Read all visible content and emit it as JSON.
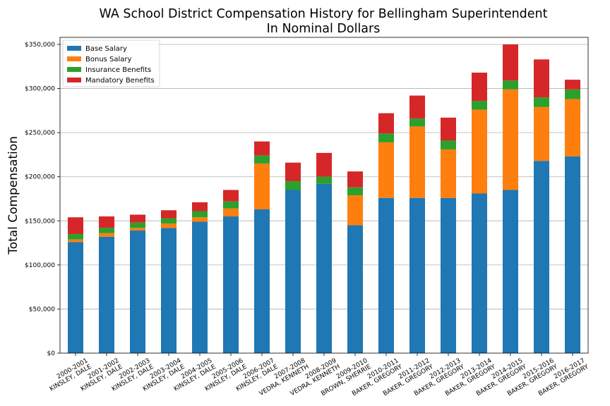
{
  "chart_data": {
    "type": "bar",
    "stacked": true,
    "title": "WA School District Compensation History for Bellingham Superintendent",
    "subtitle": "In Nominal Dollars",
    "xlabel": "",
    "ylabel": "Total Compensation",
    "ylim": [
      0,
      358000
    ],
    "yticks": [
      0,
      50000,
      100000,
      150000,
      200000,
      250000,
      300000,
      350000
    ],
    "ytick_labels": [
      "$0",
      "$50,000",
      "$100,000",
      "$150,000",
      "$200,000",
      "$250,000",
      "$300,000",
      "$350,000"
    ],
    "grid": "y",
    "legend_position": "top-left",
    "categories": [
      [
        "2000-2001",
        "KINSLEY, DALE"
      ],
      [
        "2001-2002",
        "KINSLEY, DALE"
      ],
      [
        "2002-2003",
        "KINSLEY, DALE"
      ],
      [
        "2003-2004",
        "KINSLEY, DALE"
      ],
      [
        "2004-2005",
        "KINSLEY, DALE"
      ],
      [
        "2005-2006",
        "KINSLEY, DALE"
      ],
      [
        "2006-2007",
        "KINSLEY, DALE"
      ],
      [
        "2007-2008",
        "VEDRA, KENNETH"
      ],
      [
        "2008-2009",
        "VEDRA, KENNETH"
      ],
      [
        "2009-2010",
        "BROWN, SHERRIE"
      ],
      [
        "2010-2011",
        "BAKER, GREGORY"
      ],
      [
        "2011-2012",
        "BAKER, GREGORY"
      ],
      [
        "2012-2013",
        "BAKER, GREGORY"
      ],
      [
        "2013-2014",
        "BAKER, GREGORY"
      ],
      [
        "2014-2015",
        "BAKER, GREGORY"
      ],
      [
        "2015-2016",
        "BAKER, GREGORY"
      ],
      [
        "2016-2017",
        "BAKER, GREGORY"
      ]
    ],
    "series": [
      {
        "name": "Base Salary",
        "color": "#1f77b4",
        "values": [
          126000,
          132000,
          139000,
          142000,
          149000,
          155000,
          163000,
          185000,
          192000,
          145000,
          176000,
          176000,
          176000,
          181000,
          185000,
          218000,
          223000
        ]
      },
      {
        "name": "Bonus Salary",
        "color": "#ff7f0e",
        "values": [
          3000,
          4000,
          3000,
          5000,
          5000,
          9000,
          52000,
          0,
          0,
          34000,
          63000,
          81000,
          55000,
          95000,
          114000,
          61000,
          65000
        ]
      },
      {
        "name": "Insurance Benefits",
        "color": "#2ca02c",
        "values": [
          6000,
          6000,
          6000,
          6000,
          7000,
          8000,
          9000,
          10000,
          8000,
          9000,
          10000,
          9000,
          10000,
          10000,
          10000,
          11000,
          11000
        ]
      },
      {
        "name": "Mandatory Benefits",
        "color": "#d62728",
        "values": [
          19000,
          13000,
          9000,
          9000,
          10000,
          13000,
          16000,
          21000,
          27000,
          18000,
          23000,
          26000,
          26000,
          32000,
          41000,
          43000,
          11000
        ]
      }
    ]
  }
}
